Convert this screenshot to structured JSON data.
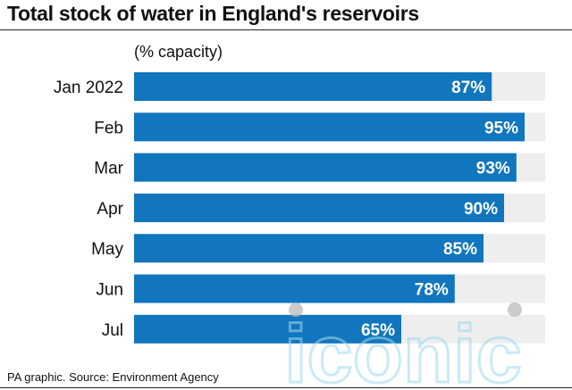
{
  "title": "Total stock of water in England's reservoirs",
  "source": "PA graphic. Source: Environment Agency",
  "watermark": "iconic",
  "colors": {
    "bar": "#1176bd",
    "track": "#eeeeee",
    "label": "#ffffff"
  },
  "chart_data": {
    "type": "bar",
    "orientation": "horizontal",
    "title": "Total stock of water in England's reservoirs",
    "unit_label": "(% capacity)",
    "categories": [
      "Jan 2022",
      "Feb",
      "Mar",
      "Apr",
      "May",
      "Jun",
      "Jul"
    ],
    "values": [
      87,
      95,
      93,
      90,
      85,
      78,
      65
    ],
    "value_labels": [
      "87%",
      "95%",
      "93%",
      "90%",
      "85%",
      "78%",
      "65%"
    ],
    "xlim": [
      0,
      100
    ],
    "grid": false,
    "legend": "none"
  }
}
